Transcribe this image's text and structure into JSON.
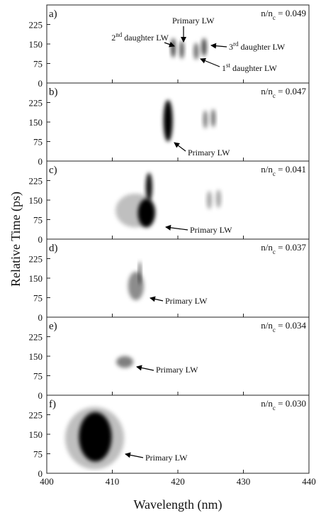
{
  "figure": {
    "ylabel": "Relative Time (ps)"
  },
  "chart_data": [
    {
      "type": "streak",
      "panel": "a)",
      "density": [
        {
          "t": "n/n"
        },
        {
          "t": "c",
          "sub": true
        },
        {
          "t": " = 0.049"
        }
      ],
      "xlim": [
        400,
        440
      ],
      "xticks": [
        400,
        410,
        420,
        430,
        440
      ],
      "ylim": [
        0,
        300
      ],
      "yticks": [
        0,
        75,
        150,
        225
      ],
      "spots": [
        {
          "x": 419.3,
          "y": 135,
          "width": 0.7,
          "height": 75,
          "darkness": 0.75
        },
        {
          "x": 420.6,
          "y": 128,
          "width": 0.7,
          "height": 70,
          "darkness": 0.65
        },
        {
          "x": 422.8,
          "y": 122,
          "width": 0.8,
          "height": 65,
          "darkness": 0.55
        },
        {
          "x": 424.0,
          "y": 138,
          "width": 0.8,
          "height": 70,
          "darkness": 0.7
        }
      ],
      "annotations": [
        {
          "parts": [
            {
              "t": "Primary LW"
            }
          ]
        },
        {
          "parts": [
            {
              "t": "2"
            },
            {
              "t": "nd",
              "sup": true
            },
            {
              "t": " daughter LW"
            }
          ]
        },
        {
          "parts": [
            {
              "t": "3"
            },
            {
              "t": "rd",
              "sup": true
            },
            {
              "t": " daughter LW"
            }
          ]
        },
        {
          "parts": [
            {
              "t": "1"
            },
            {
              "t": "st",
              "sup": true
            },
            {
              "t": " daughter LW"
            }
          ]
        }
      ]
    },
    {
      "type": "streak",
      "panel": "b)",
      "density": [
        {
          "t": "n/n"
        },
        {
          "t": "c",
          "sub": true
        },
        {
          "t": " = 0.047"
        }
      ],
      "xlim": [
        400,
        440
      ],
      "xticks": [
        400,
        410,
        420,
        430,
        440
      ],
      "ylim": [
        0,
        300
      ],
      "yticks": [
        0,
        75,
        150,
        225
      ],
      "spots": [
        {
          "x": 418.5,
          "y": 155,
          "width": 1.4,
          "height": 160,
          "darkness": 1
        },
        {
          "x": 424.2,
          "y": 160,
          "width": 0.7,
          "height": 70,
          "darkness": 0.5
        },
        {
          "x": 425.4,
          "y": 165,
          "width": 0.7,
          "height": 70,
          "darkness": 0.55
        }
      ],
      "annotations": [
        {
          "parts": [
            {
              "t": "Primary LW"
            }
          ]
        }
      ]
    },
    {
      "type": "streak",
      "panel": "c)",
      "density": [
        {
          "t": "n/n"
        },
        {
          "t": "c",
          "sub": true
        },
        {
          "t": " = 0.041"
        }
      ],
      "xlim": [
        400,
        440
      ],
      "xticks": [
        400,
        410,
        420,
        430,
        440
      ],
      "ylim": [
        0,
        300
      ],
      "yticks": [
        0,
        75,
        150,
        225
      ],
      "spots": [
        {
          "x": 413.5,
          "y": 110,
          "width": 6,
          "height": 130,
          "darkness": 0.25
        },
        {
          "x": 415.2,
          "y": 100,
          "width": 2.6,
          "height": 110,
          "darkness": 1
        },
        {
          "x": 415.6,
          "y": 200,
          "width": 1.0,
          "height": 110,
          "darkness": 0.95
        },
        {
          "x": 424.8,
          "y": 150,
          "width": 0.8,
          "height": 70,
          "darkness": 0.35
        },
        {
          "x": 426.2,
          "y": 155,
          "width": 0.8,
          "height": 70,
          "darkness": 0.35
        }
      ],
      "annotations": [
        {
          "parts": [
            {
              "t": "Primary LW"
            }
          ]
        }
      ]
    },
    {
      "type": "streak",
      "panel": "d)",
      "density": [
        {
          "t": "n/n"
        },
        {
          "t": "c",
          "sub": true
        },
        {
          "t": " = 0.037"
        }
      ],
      "xlim": [
        400,
        440
      ],
      "xticks": [
        400,
        410,
        420,
        430,
        440
      ],
      "ylim": [
        0,
        300
      ],
      "yticks": [
        0,
        75,
        150,
        225
      ],
      "spots": [
        {
          "x": 413.6,
          "y": 120,
          "width": 2.4,
          "height": 110,
          "darkness": 0.45
        },
        {
          "x": 414.2,
          "y": 170,
          "width": 0.4,
          "height": 90,
          "darkness": 0.7
        }
      ],
      "annotations": [
        {
          "parts": [
            {
              "t": "Primary LW"
            }
          ]
        }
      ]
    },
    {
      "type": "streak",
      "panel": "e)",
      "density": [
        {
          "t": "n/n"
        },
        {
          "t": "c",
          "sub": true
        },
        {
          "t": " = 0.034"
        }
      ],
      "xlim": [
        400,
        440
      ],
      "xticks": [
        400,
        410,
        420,
        430,
        440
      ],
      "ylim": [
        0,
        300
      ],
      "yticks": [
        0,
        75,
        150,
        225
      ],
      "spots": [
        {
          "x": 411.9,
          "y": 128,
          "width": 2.6,
          "height": 45,
          "darkness": 0.5
        }
      ],
      "annotations": [
        {
          "parts": [
            {
              "t": "Primary LW"
            }
          ]
        }
      ]
    },
    {
      "type": "streak",
      "panel": "f)",
      "density": [
        {
          "t": "n/n"
        },
        {
          "t": "c",
          "sub": true
        },
        {
          "t": " = 0.030"
        }
      ],
      "xlim": [
        400,
        440
      ],
      "xticks": [
        400,
        410,
        420,
        430,
        440
      ],
      "ylim": [
        0,
        300
      ],
      "yticks": [
        0,
        75,
        150,
        225
      ],
      "xlabel": "Wavelength (nm)",
      "spots": [
        {
          "x": 407.3,
          "y": 135,
          "width": 9,
          "height": 240,
          "darkness": 0.25
        },
        {
          "x": 407.4,
          "y": 140,
          "width": 5,
          "height": 190,
          "darkness": 1
        }
      ],
      "annotations": [
        {
          "parts": [
            {
              "t": "Primary LW"
            }
          ]
        }
      ]
    }
  ]
}
